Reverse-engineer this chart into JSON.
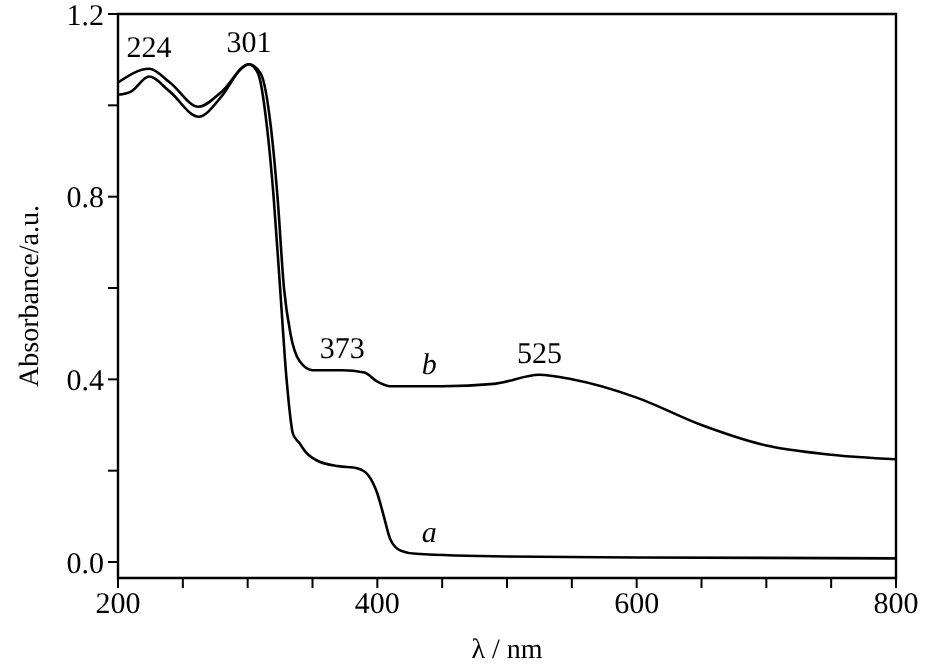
{
  "chart_data": {
    "type": "line",
    "xlabel": "λ / nm",
    "ylabel": "Absorbance/a.u.",
    "xlim": [
      200,
      800
    ],
    "ylim": [
      -0.035,
      1.2
    ],
    "xticks": [
      200,
      {
        "value": 250,
        "label": null
      },
      {
        "value": 300,
        "label": null
      },
      {
        "value": 350,
        "label": null
      },
      400,
      {
        "value": 450,
        "label": null
      },
      {
        "value": 500,
        "label": null
      },
      {
        "value": 550,
        "label": null
      },
      600,
      {
        "value": 650,
        "label": null
      },
      {
        "value": 700,
        "label": null
      },
      {
        "value": 750,
        "label": null
      },
      800
    ],
    "yticks": [
      {
        "value": 0,
        "label": "0.0"
      },
      {
        "value": 0.2,
        "label": null
      },
      0.4,
      {
        "value": 0.6,
        "label": null
      },
      0.8,
      {
        "value": 1.0,
        "label": null
      },
      1.2
    ],
    "marker": "none",
    "line_style": "solid",
    "series": [
      {
        "name": "a",
        "color": "#000000",
        "x": [
          200,
          210,
          224,
          240,
          262,
          280,
          295,
          301,
          308,
          315,
          320,
          325,
          330,
          335,
          340,
          345,
          355,
          370,
          385,
          393,
          400,
          405,
          410,
          418,
          430,
          500,
          600,
          800
        ],
        "values": [
          1.023,
          1.03,
          1.063,
          1.03,
          0.975,
          1.02,
          1.08,
          1.09,
          1.07,
          0.95,
          0.8,
          0.6,
          0.4,
          0.28,
          0.26,
          0.24,
          0.22,
          0.21,
          0.205,
          0.19,
          0.15,
          0.1,
          0.05,
          0.025,
          0.018,
          0.012,
          0.01,
          0.008
        ]
      },
      {
        "name": "b",
        "color": "#000000",
        "x": [
          200,
          224,
          240,
          262,
          280,
          301,
          310,
          318,
          323,
          328,
          333,
          340,
          350,
          373,
          390,
          400,
          410,
          450,
          490,
          525,
          550,
          600,
          650,
          700,
          750,
          800
        ],
        "values": [
          1.05,
          1.08,
          1.05,
          0.997,
          1.03,
          1.09,
          1.07,
          0.95,
          0.8,
          0.6,
          0.5,
          0.44,
          0.42,
          0.42,
          0.415,
          0.395,
          0.385,
          0.385,
          0.39,
          0.41,
          0.4,
          0.36,
          0.3,
          0.255,
          0.235,
          0.225
        ]
      }
    ],
    "annotations": [
      {
        "text": "224",
        "x": 224,
        "y": 1.08
      },
      {
        "text": "301",
        "x": 301,
        "y": 1.09
      },
      {
        "text": "373",
        "x": 373,
        "y": 0.42
      },
      {
        "text": "525",
        "x": 525,
        "y": 0.41
      }
    ]
  }
}
